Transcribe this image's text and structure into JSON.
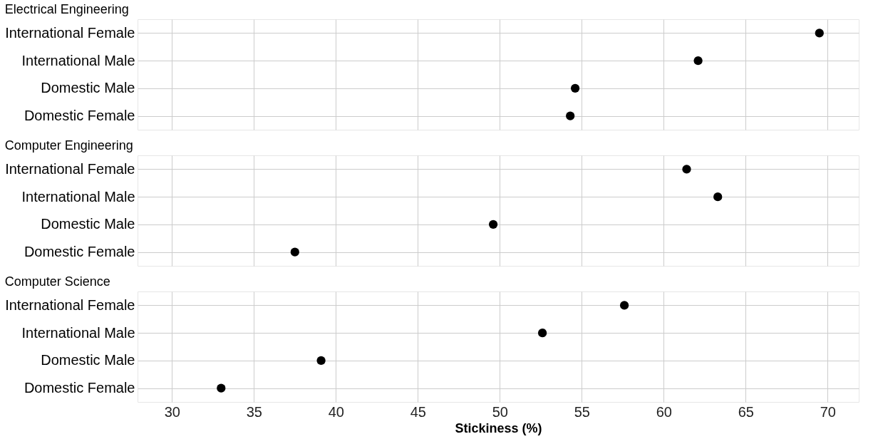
{
  "chart_data": [
    {
      "type": "scatter",
      "title": "Electrical Engineering",
      "orientation": "horizontal",
      "categories": [
        "International Female",
        "International Male",
        "Domestic Male",
        "Domestic Female"
      ],
      "values": [
        69.5,
        62.1,
        54.6,
        54.3
      ],
      "color": "#000000",
      "marker": "circle",
      "xlim": [
        27.9,
        71.9
      ],
      "xticks": [
        30,
        35,
        40,
        45,
        50,
        55,
        60,
        65,
        70
      ],
      "grid": true,
      "tick_labels": "y"
    },
    {
      "type": "scatter",
      "title": "Computer Engineering",
      "orientation": "horizontal",
      "categories": [
        "International Female",
        "International Male",
        "Domestic Male",
        "Domestic Female"
      ],
      "values": [
        61.4,
        63.3,
        49.6,
        37.5
      ],
      "color": "#000000",
      "marker": "circle",
      "xlim": [
        27.9,
        71.9
      ],
      "xticks": [
        30,
        35,
        40,
        45,
        50,
        55,
        60,
        65,
        70
      ],
      "grid": true,
      "tick_labels": "y"
    },
    {
      "type": "scatter",
      "title": "Computer Science",
      "orientation": "horizontal",
      "categories": [
        "International Female",
        "International Male",
        "Domestic Male",
        "Domestic Female"
      ],
      "values": [
        57.6,
        52.6,
        39.1,
        33.0
      ],
      "color": "#000000",
      "marker": "circle",
      "xlim": [
        27.9,
        71.9
      ],
      "xticks": [
        30,
        35,
        40,
        45,
        50,
        55,
        60,
        65,
        70
      ],
      "grid": true,
      "xlabel": "Stickiness (%)"
    }
  ]
}
